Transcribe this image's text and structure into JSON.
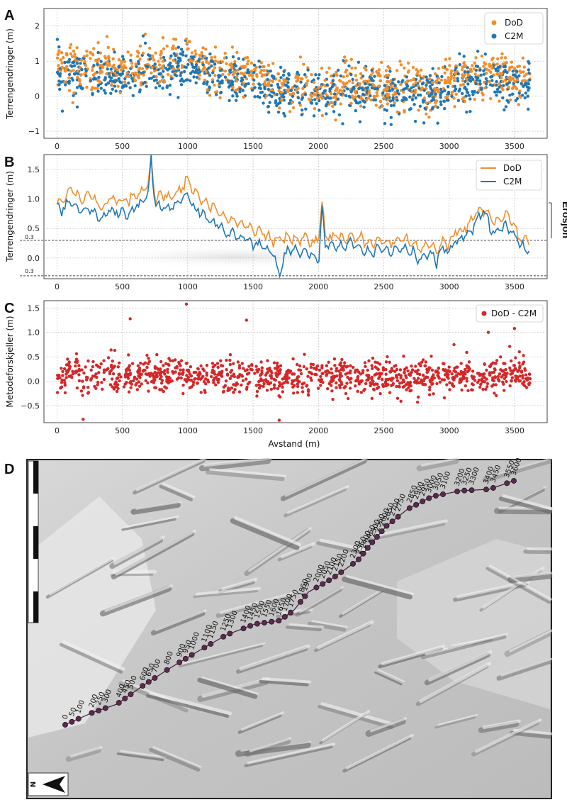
{
  "panels": {
    "a": {
      "letter": "A"
    },
    "b": {
      "letter": "B",
      "annotation": "Erosjon",
      "threshold_label_upper": "0.3",
      "threshold_label_lower": "0.3"
    },
    "c": {
      "letter": "C"
    },
    "d": {
      "letter": "D",
      "north_label": "N"
    }
  },
  "colors": {
    "dod": "#f28e2b",
    "c2m": "#1f77b4",
    "diff": "#d62728"
  },
  "chart_data": [
    {
      "panel": "A",
      "type": "scatter",
      "title": "",
      "xlabel": "",
      "ylabel": "Terrengendringer (m)",
      "xlim": [
        -100,
        3750
      ],
      "ylim": [
        -1.2,
        2.5
      ],
      "xticks": [
        "0",
        "500",
        "1000",
        "1500",
        "2000",
        "2500",
        "3000",
        "3500"
      ],
      "yticks": [
        "−1",
        "0",
        "1",
        "2"
      ],
      "grid": true,
      "legend": "top-right",
      "series": [
        {
          "name": "DoD",
          "x": [
            0,
            100,
            200,
            300,
            400,
            500,
            600,
            700,
            800,
            900,
            1000,
            1100,
            1200,
            1300,
            1400,
            1500,
            1600,
            1700,
            1800,
            1900,
            2000,
            2100,
            2200,
            2300,
            2400,
            2500,
            2600,
            2700,
            2800,
            2900,
            3000,
            3100,
            3200,
            3300,
            3400,
            3500,
            3600
          ],
          "values": [
            0.9,
            0.9,
            0.8,
            0.8,
            0.7,
            0.75,
            0.7,
            1.1,
            0.8,
            1.0,
            1.2,
            0.9,
            0.75,
            0.7,
            0.55,
            0.6,
            0.45,
            0.3,
            0.35,
            0.3,
            0.2,
            0.2,
            0.3,
            0.35,
            0.4,
            0.2,
            0.3,
            0.25,
            0.15,
            0.2,
            0.4,
            0.5,
            0.6,
            0.6,
            0.6,
            0.5,
            0.45
          ]
        },
        {
          "name": "C2M",
          "x": [
            0,
            100,
            200,
            300,
            400,
            500,
            600,
            700,
            800,
            900,
            1000,
            1100,
            1200,
            1300,
            1400,
            1500,
            1600,
            1700,
            1800,
            1900,
            2000,
            2100,
            2200,
            2300,
            2400,
            2500,
            2600,
            2700,
            2800,
            2900,
            3000,
            3100,
            3200,
            3300,
            3400,
            3500,
            3600
          ],
          "values": [
            0.75,
            0.6,
            0.6,
            0.55,
            0.5,
            0.55,
            0.5,
            0.85,
            0.55,
            0.7,
            0.9,
            0.6,
            0.5,
            0.45,
            0.35,
            0.35,
            0.25,
            0.1,
            0.15,
            0.1,
            0.0,
            0.1,
            0.15,
            0.2,
            0.25,
            0.05,
            0.15,
            0.1,
            0.0,
            0.05,
            0.2,
            0.35,
            0.45,
            0.45,
            0.45,
            0.35,
            0.3
          ]
        }
      ]
    },
    {
      "panel": "B",
      "type": "line",
      "title": "",
      "xlabel": "",
      "ylabel": "Terrengendringer (m)",
      "xlim": [
        -100,
        3750
      ],
      "ylim": [
        -0.35,
        1.75
      ],
      "xticks": [
        "0",
        "500",
        "1000",
        "1500",
        "2000",
        "2500",
        "3000",
        "3500"
      ],
      "yticks": [
        "0.0",
        "0.5",
        "1.0",
        "1.5"
      ],
      "threshold_values": [
        0.3,
        -0.3
      ],
      "grid": true,
      "legend": "top-right",
      "series": [
        {
          "name": "DoD",
          "x": [
            0,
            50,
            100,
            150,
            200,
            250,
            300,
            350,
            400,
            450,
            500,
            550,
            600,
            650,
            700,
            720,
            750,
            800,
            850,
            900,
            950,
            1000,
            1050,
            1100,
            1150,
            1200,
            1250,
            1300,
            1350,
            1400,
            1450,
            1500,
            1550,
            1600,
            1650,
            1700,
            1750,
            1800,
            1850,
            1900,
            1950,
            2000,
            2030,
            2050,
            2100,
            2150,
            2200,
            2250,
            2300,
            2350,
            2400,
            2450,
            2500,
            2550,
            2600,
            2650,
            2700,
            2750,
            2800,
            2850,
            2900,
            2950,
            3000,
            3050,
            3100,
            3150,
            3200,
            3250,
            3300,
            3350,
            3400,
            3450,
            3500,
            3550,
            3600
          ],
          "values": [
            0.9,
            1.0,
            1.2,
            1.1,
            1.0,
            1.1,
            0.9,
            0.85,
            1.0,
            0.95,
            1.0,
            0.95,
            1.05,
            1.1,
            1.3,
            1.6,
            1.05,
            1.05,
            1.0,
            1.1,
            1.2,
            1.3,
            1.1,
            1.0,
            0.9,
            0.85,
            0.75,
            0.7,
            0.65,
            0.6,
            0.55,
            0.45,
            0.5,
            0.4,
            0.35,
            0.3,
            0.35,
            0.35,
            0.3,
            0.35,
            0.25,
            0.3,
            1.0,
            0.4,
            0.35,
            0.35,
            0.3,
            0.4,
            0.35,
            0.3,
            0.25,
            0.3,
            0.3,
            0.25,
            0.3,
            0.35,
            0.25,
            0.2,
            0.15,
            0.25,
            0.1,
            0.3,
            0.25,
            0.45,
            0.5,
            0.55,
            0.75,
            0.8,
            0.75,
            0.55,
            0.65,
            0.7,
            0.5,
            0.35,
            0.3
          ]
        },
        {
          "name": "C2M",
          "x": [
            0,
            50,
            100,
            150,
            200,
            250,
            300,
            350,
            400,
            450,
            500,
            550,
            600,
            650,
            700,
            720,
            750,
            800,
            850,
            900,
            950,
            1000,
            1050,
            1100,
            1150,
            1200,
            1250,
            1300,
            1350,
            1400,
            1450,
            1500,
            1550,
            1600,
            1650,
            1700,
            1750,
            1800,
            1850,
            1900,
            1950,
            2000,
            2030,
            2050,
            2100,
            2150,
            2200,
            2250,
            2300,
            2350,
            2400,
            2450,
            2500,
            2550,
            2600,
            2650,
            2700,
            2750,
            2800,
            2850,
            2900,
            2950,
            3000,
            3050,
            3100,
            3150,
            3200,
            3250,
            3300,
            3350,
            3400,
            3450,
            3500,
            3550,
            3600
          ],
          "values": [
            0.85,
            0.8,
            0.95,
            0.85,
            0.8,
            0.85,
            0.7,
            0.65,
            0.8,
            0.75,
            0.8,
            0.75,
            0.85,
            0.9,
            1.1,
            1.7,
            0.85,
            0.85,
            0.8,
            0.9,
            1.0,
            1.05,
            0.85,
            0.75,
            0.65,
            0.6,
            0.5,
            0.45,
            0.4,
            0.35,
            0.3,
            0.2,
            0.25,
            0.15,
            0.1,
            -0.3,
            0.1,
            0.15,
            0.1,
            0.15,
            0.05,
            -0.1,
            0.9,
            0.2,
            0.2,
            0.2,
            0.15,
            0.25,
            0.2,
            0.15,
            0.1,
            0.15,
            0.15,
            0.1,
            0.15,
            0.2,
            0.1,
            0.05,
            0.0,
            0.1,
            -0.05,
            0.15,
            0.1,
            0.3,
            0.35,
            0.4,
            0.6,
            0.85,
            0.6,
            0.4,
            0.5,
            0.55,
            0.35,
            0.2,
            0.15
          ]
        }
      ]
    },
    {
      "panel": "C",
      "type": "scatter",
      "title": "",
      "xlabel": "Avstand (m)",
      "ylabel": "Metodeforskjeller (m)",
      "xlim": [
        -100,
        3750
      ],
      "ylim": [
        -0.85,
        1.65
      ],
      "xticks": [
        "0",
        "500",
        "1000",
        "1500",
        "2000",
        "2500",
        "3000",
        "3500"
      ],
      "yticks": [
        "−0.5",
        "0.0",
        "0.5",
        "1.0",
        "1.5"
      ],
      "grid": true,
      "legend": "top-right",
      "series": [
        {
          "name": "DoD - C2M",
          "x": [
            0,
            100,
            200,
            300,
            400,
            500,
            600,
            700,
            800,
            900,
            1000,
            1100,
            1200,
            1300,
            1400,
            1500,
            1600,
            1700,
            1800,
            1900,
            2000,
            2100,
            2200,
            2300,
            2400,
            2500,
            2600,
            2700,
            2800,
            2900,
            3000,
            3100,
            3200,
            3300,
            3400,
            3500,
            3600
          ],
          "values": [
            0.1,
            0.15,
            0.12,
            0.1,
            0.15,
            0.12,
            0.15,
            0.12,
            0.1,
            0.15,
            0.12,
            0.1,
            0.1,
            0.12,
            0.1,
            0.08,
            0.1,
            0.08,
            0.1,
            0.08,
            0.1,
            0.08,
            0.1,
            0.08,
            0.1,
            0.08,
            0.1,
            0.08,
            0.1,
            0.08,
            0.1,
            0.1,
            0.12,
            0.12,
            0.15,
            0.15,
            0.12
          ]
        }
      ]
    },
    {
      "panel": "D",
      "type": "map",
      "title": "",
      "profile_labels": [
        "0",
        "50",
        "100",
        "200",
        "250",
        "300",
        "400",
        "450",
        "500",
        "600",
        "650",
        "700",
        "800",
        "900",
        "950",
        "1000",
        "1100",
        "1150",
        "1250",
        "1300",
        "1400",
        "1450",
        "1500",
        "1550",
        "1600",
        "1650",
        "1700",
        "1750",
        "1850",
        "1900",
        "2000",
        "2050",
        "2100",
        "2150",
        "2200",
        "2300",
        "2350",
        "2400",
        "2450",
        "2500",
        "2550",
        "2600",
        "2650",
        "2700",
        "2750",
        "2850",
        "2900",
        "2950",
        "3000",
        "3050",
        "3100",
        "3200",
        "3250",
        "3300",
        "3400",
        "3450",
        "3550",
        "3600"
      ]
    }
  ]
}
